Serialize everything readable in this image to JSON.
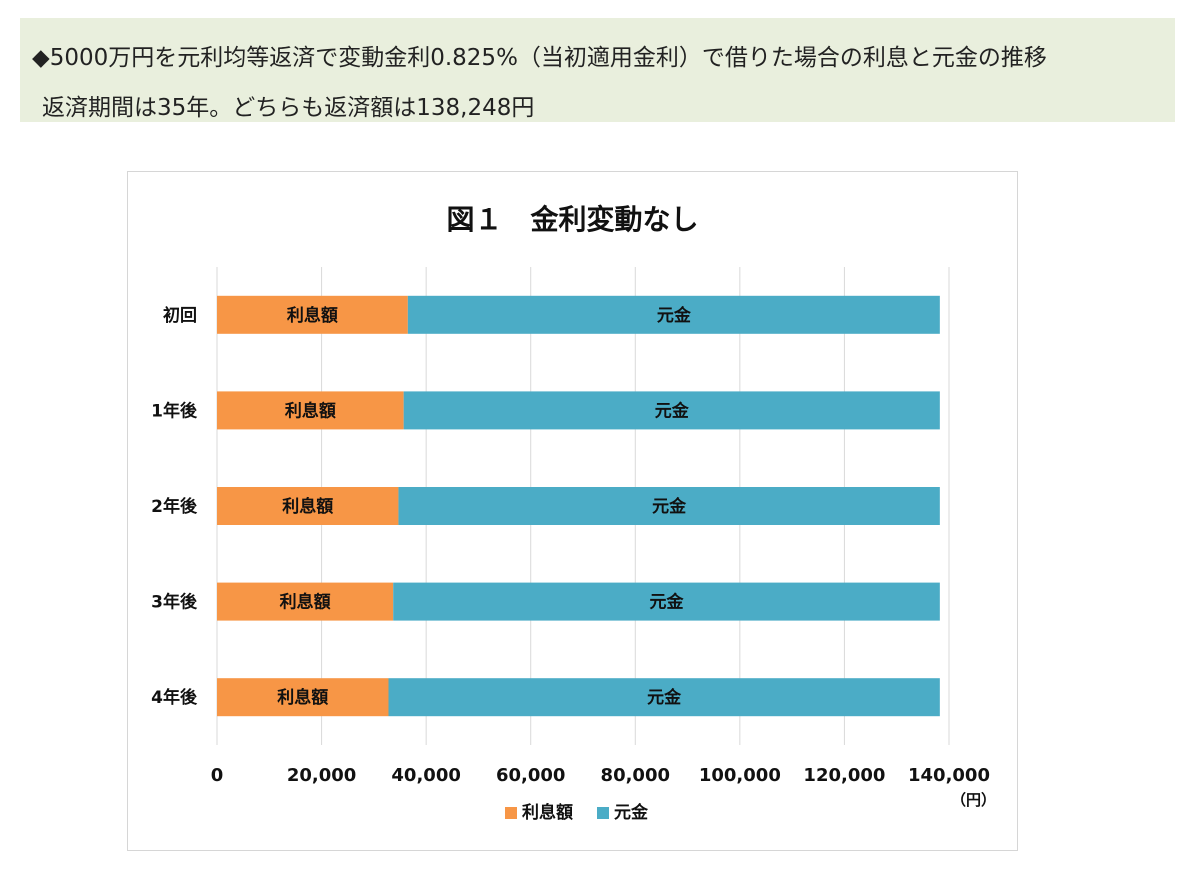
{
  "header": {
    "line1": "◆5000万円を元利均等返済で変動金利0.825%（当初適用金利）で借りた場合の利息と元金の推移",
    "line2": "返済期間は35年。どちらも返済額は138,248円"
  },
  "colors": {
    "interest": "#f79646",
    "principal": "#4bacc6",
    "grid": "#d9d9d9",
    "banner": "#e9efdd"
  },
  "chart_data": {
    "type": "bar",
    "orientation": "horizontal",
    "stacked": true,
    "title": "図１　金利変動なし",
    "categories": [
      "初回",
      "1年後",
      "2年後",
      "3年後",
      "4年後"
    ],
    "series": [
      {
        "name": "利息額",
        "values": [
          36500,
          35700,
          34700,
          33700,
          32800
        ],
        "label": "利息額"
      },
      {
        "name": "元金",
        "values": [
          101748,
          102548,
          103548,
          104548,
          105448
        ],
        "label": "元金"
      }
    ],
    "xlim": [
      0,
      140000
    ],
    "xticks": [
      "0",
      "20,000",
      "40,000",
      "60,000",
      "80,000",
      "100,000",
      "120,000",
      "140,000"
    ],
    "xtick_values": [
      0,
      20000,
      40000,
      60000,
      80000,
      100000,
      120000,
      140000
    ],
    "unit": "（円）",
    "legend_position": "bottom",
    "grid": "vertical"
  }
}
